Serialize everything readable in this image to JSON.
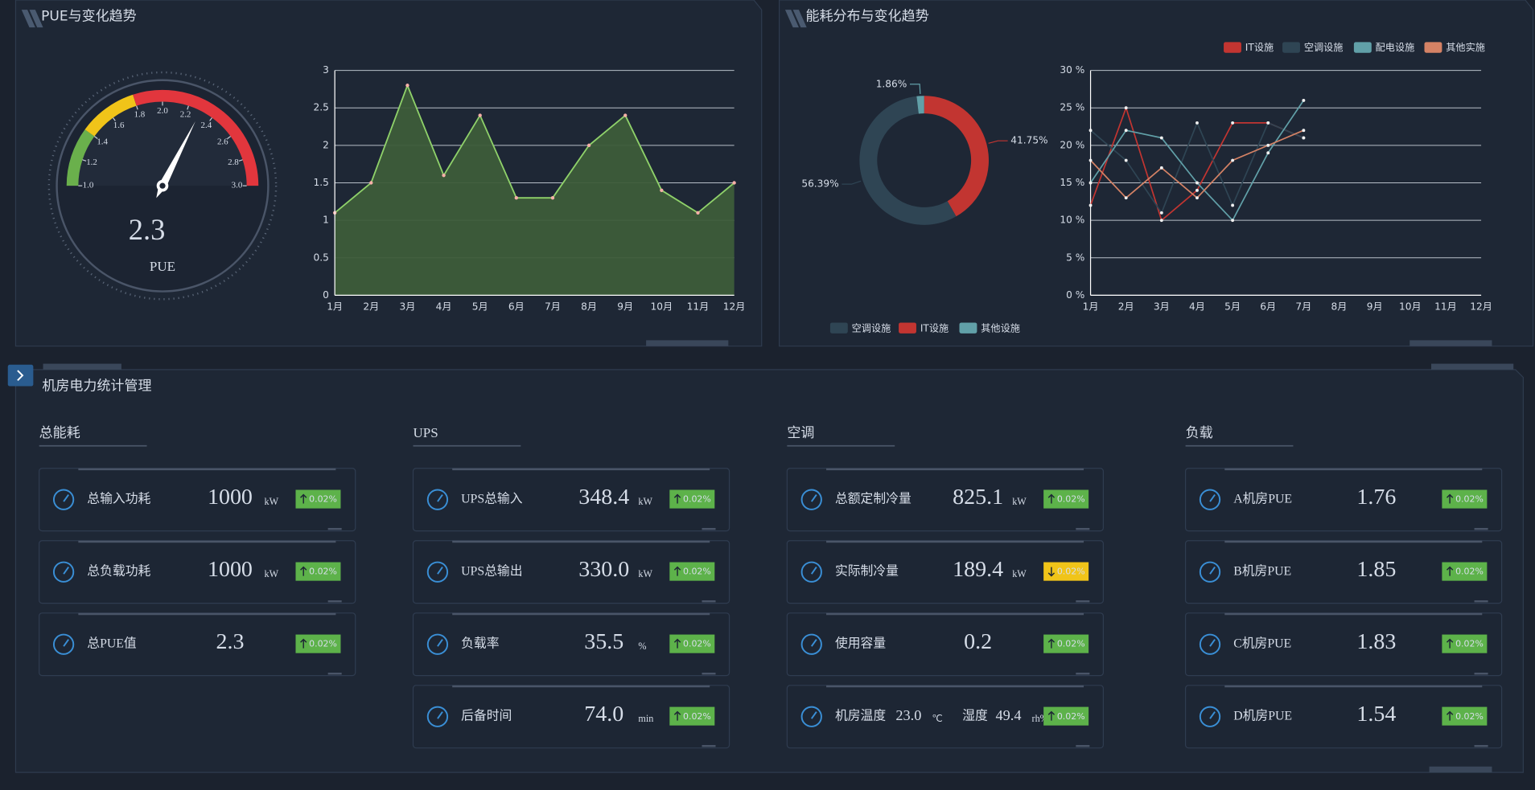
{
  "panels": {
    "pue_title": "PUE与变化趋势",
    "energy_title": "能耗分布与变化趋势",
    "power_title": "机房电力统计管理"
  },
  "chart_data": [
    {
      "type": "gauge",
      "name": "PUE",
      "value": 2.3,
      "value_color": "#7dc35a",
      "ylim": [
        1,
        3
      ],
      "ticks": [
        {
          "value": 1,
          "label": "1.0"
        },
        1.2,
        1.4,
        1.6,
        1.8,
        {
          "value": 2,
          "label": "2.0"
        },
        2.2,
        2.4,
        2.6,
        2.8,
        {
          "value": 3,
          "label": "3.0"
        }
      ],
      "bands": [
        {
          "to": 1.4,
          "color": "#6ab04c"
        },
        {
          "to": 1.8,
          "color": "#f0c419"
        },
        {
          "to": 3,
          "color": "#e2363d"
        }
      ]
    },
    {
      "type": "area",
      "categories": [
        "1月",
        "2月",
        "3月",
        "4月",
        "5月",
        "6月",
        "7月",
        "8月",
        "9月",
        "10月",
        "11月",
        "12月"
      ],
      "values": [
        1.1,
        1.5,
        2.8,
        1.6,
        2.4,
        1.3,
        1.3,
        2.0,
        2.4,
        1.4,
        1.1,
        1.5
      ],
      "color": "#8fd16a",
      "ylim": [
        0,
        3
      ],
      "yticks": [
        0,
        0.5,
        1,
        1.5,
        2,
        2.5,
        3
      ],
      "grid": true
    },
    {
      "type": "donut",
      "categories": [
        "IT设施",
        "空调设施",
        "其他设施"
      ],
      "values": [
        41.75,
        56.39,
        1.86
      ],
      "value_labels": [
        "41.75%",
        "56.39%",
        "1.86%"
      ],
      "colors": [
        "#c23531",
        "#2f4554",
        "#61a0a8"
      ],
      "legend": "bottom"
    },
    {
      "type": "line",
      "categories": [
        "1月",
        "2月",
        "3月",
        "4月",
        "5月",
        "6月",
        "7月",
        "8月",
        "9月",
        "10月",
        "11月",
        "12月"
      ],
      "series": [
        {
          "name": "IT设施",
          "color": "#c23531",
          "values": [
            12,
            25,
            10,
            14,
            23,
            23,
            21,
            null,
            null,
            null,
            null,
            null
          ]
        },
        {
          "name": "空调设施",
          "color": "#2f4554",
          "values": [
            22,
            18,
            11,
            23,
            12,
            23,
            21,
            null,
            null,
            null,
            null,
            null
          ]
        },
        {
          "name": "配电设施",
          "color": "#61a0a8",
          "values": [
            15,
            22,
            21,
            15,
            10,
            19,
            26,
            null,
            null,
            null,
            null,
            null
          ]
        },
        {
          "name": "其他实施",
          "color": "#d48265",
          "values": [
            18,
            13,
            17,
            13,
            18,
            20,
            22,
            null,
            null,
            null,
            null,
            null
          ]
        }
      ],
      "ylim": [
        0,
        30
      ],
      "yticks": [
        {
          "value": 0,
          "label": "0 %"
        },
        {
          "value": 5,
          "label": "5 %"
        },
        {
          "value": 10,
          "label": "10 %"
        },
        {
          "value": 15,
          "label": "15 %"
        },
        {
          "value": 20,
          "label": "20 %"
        },
        {
          "value": 25,
          "label": "25 %"
        },
        {
          "value": 30,
          "label": "30 %"
        }
      ],
      "grid": true,
      "legend": "top-right"
    }
  ],
  "sections": [
    {
      "title": "总能耗",
      "items": [
        {
          "label": "总输入功耗",
          "value": "1000",
          "unit": "kW",
          "change": "0.02%",
          "trend": "up",
          "color": "#3a8fd6"
        },
        {
          "label": "总负载功耗",
          "value": "1000",
          "unit": "kW",
          "change": "0.02%",
          "trend": "up",
          "color": "#3a8fd6"
        },
        {
          "label": "总PUE值",
          "value": "2.3",
          "change": "0.02%",
          "trend": "up",
          "color": "#3a8fd6"
        }
      ]
    },
    {
      "title": "UPS",
      "items": [
        {
          "label": "UPS总输入",
          "value": "348.4",
          "unit": "kW",
          "change": "0.02%",
          "trend": "up",
          "color": "#3a8fd6"
        },
        {
          "label": "UPS总输出",
          "value": "330.0",
          "unit": "kW",
          "change": "0.02%",
          "trend": "up",
          "color": "#3a8fd6"
        },
        {
          "label": "负载率",
          "value": "35.5",
          "unit": "%",
          "change": "0.02%",
          "trend": "up",
          "color": "#3a8fd6"
        },
        {
          "label": "后备时间",
          "value": "74.0",
          "unit": "min",
          "change": "0.02%",
          "trend": "up",
          "color": "#3a8fd6"
        }
      ]
    },
    {
      "title": "空调",
      "items": [
        {
          "label": "总额定制冷量",
          "value": "825.1",
          "unit": "kW",
          "change": "0.02%",
          "trend": "up",
          "color": "#3a8fd6"
        },
        {
          "label": "实际制冷量",
          "value": "189.4",
          "unit": "kW",
          "change": "0.02%",
          "trend": "down",
          "color": "#e2363d"
        },
        {
          "label": "使用容量",
          "value": "0.2",
          "change": "0.02%",
          "trend": "up",
          "color": "#3a8fd6"
        },
        {
          "label": "机房温度",
          "value": "23.0",
          "unit": "℃",
          "label2": "湿度",
          "value2": "49.4",
          "unit2": "rh%",
          "change": "0.02%",
          "trend": "up",
          "color": "#3a8fd6"
        }
      ]
    },
    {
      "title": "负载",
      "items": [
        {
          "label": "A机房PUE",
          "value": "1.76",
          "change": "0.02%",
          "trend": "up",
          "color": "#3a8fd6"
        },
        {
          "label": "B机房PUE",
          "value": "1.85",
          "change": "0.02%",
          "trend": "up",
          "color": "#3a8fd6"
        },
        {
          "label": "C机房PUE",
          "value": "1.83",
          "change": "0.02%",
          "trend": "up",
          "color": "#e2363d"
        },
        {
          "label": "D机房PUE",
          "value": "1.54",
          "change": "0.02%",
          "trend": "up",
          "color": "#e0a93a"
        }
      ]
    }
  ]
}
